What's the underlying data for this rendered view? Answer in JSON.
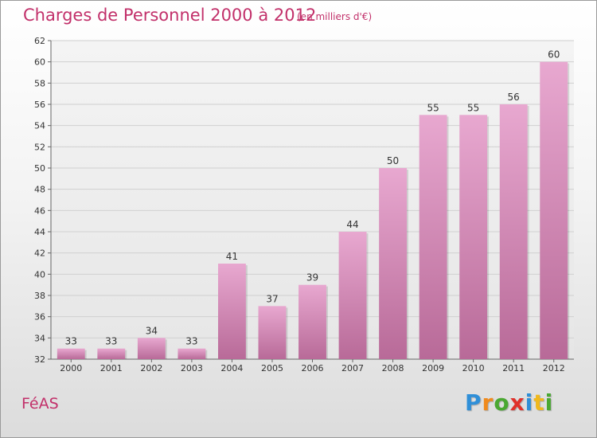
{
  "header": {
    "title": "Charges de Personnel 2000 à 2012",
    "subtitle": "(en milliers d'€)"
  },
  "footer": {
    "place": "FéAS",
    "logo": [
      {
        "char": "P",
        "color": "#2f8fd8"
      },
      {
        "char": "r",
        "color": "#f08a1c"
      },
      {
        "char": "o",
        "color": "#4aa832"
      },
      {
        "char": "x",
        "color": "#e0302a"
      },
      {
        "char": "i",
        "color": "#2f8fd8"
      },
      {
        "char": "t",
        "color": "#f0b81c"
      },
      {
        "char": "i",
        "color": "#4aa832"
      }
    ]
  },
  "colors": {
    "bar_top": "#e8a8d0",
    "bar_bottom": "#b86a98",
    "text_accent": "#c2306a"
  },
  "chart_data": {
    "type": "bar",
    "categories": [
      "2000",
      "2001",
      "2002",
      "2003",
      "2004",
      "2005",
      "2006",
      "2007",
      "2008",
      "2009",
      "2010",
      "2011",
      "2012"
    ],
    "values": [
      33,
      33,
      34,
      33,
      41,
      37,
      39,
      44,
      50,
      55,
      55,
      56,
      60
    ],
    "title": "Charges de Personnel 2000 à 2012",
    "subtitle": "(en milliers d'€)",
    "ylim": [
      32,
      62
    ],
    "yticks": [
      32,
      34,
      36,
      38,
      40,
      42,
      44,
      46,
      48,
      50,
      52,
      54,
      56,
      58,
      60,
      62
    ],
    "grid": true
  }
}
